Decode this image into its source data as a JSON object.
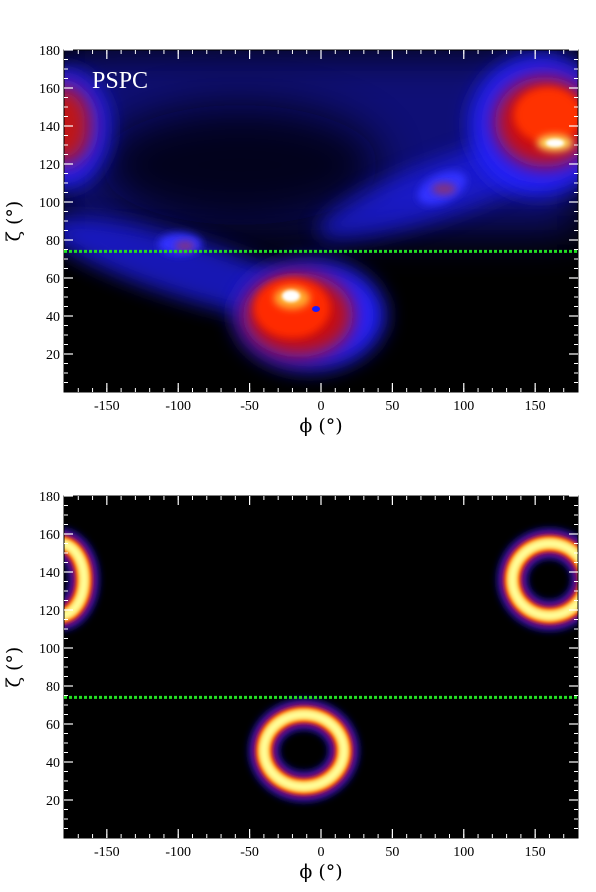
{
  "chart_data": [
    {
      "type": "heatmap",
      "panel_label": "PSPC",
      "xlabel": "ϕ (°)",
      "ylabel": "ζ (°)",
      "xlim": [
        -180,
        180
      ],
      "ylim": [
        0,
        180
      ],
      "xticks": [
        -150,
        -100,
        -50,
        0,
        50,
        100,
        150
      ],
      "xtick_labels": [
        "-150",
        "-100",
        "-50",
        "0",
        "50",
        "100",
        "150"
      ],
      "yticks": [
        20,
        40,
        60,
        80,
        100,
        120,
        140,
        160,
        180
      ],
      "ytick_labels": [
        "20",
        "40",
        "60",
        "80",
        "100",
        "120",
        "140",
        "160",
        "180"
      ],
      "colormap": [
        "#000000",
        "#0a0a60",
        "#1a1aff",
        "#c01010",
        "#ff2a00",
        "#ffb030",
        "#ffffff"
      ],
      "background_color": "#000000",
      "reference_line": {
        "y": 74,
        "style": "dotted",
        "color": "#22dd22"
      },
      "features": [
        {
          "description": "broad glow",
          "x": -10,
          "y": 125,
          "intensity": 0.2
        },
        {
          "description": "hot region",
          "x": -10,
          "y": 45,
          "intensity": 0.75
        },
        {
          "description": "peak",
          "x": -20,
          "y": 48,
          "intensity": 1.0
        },
        {
          "description": "hot region",
          "x": 155,
          "y": 140,
          "intensity": 0.8
        },
        {
          "description": "peak",
          "x": 160,
          "y": 130,
          "intensity": 1.0
        },
        {
          "description": "hot region",
          "x": -178,
          "y": 135,
          "intensity": 0.55
        },
        {
          "description": "weak blob",
          "x": 85,
          "y": 103,
          "intensity": 0.45
        },
        {
          "description": "weak blob",
          "x": -98,
          "y": 78,
          "intensity": 0.45
        }
      ]
    },
    {
      "type": "heatmap",
      "panel_label": "",
      "xlabel": "ϕ (°)",
      "ylabel": "ζ (°)",
      "xlim": [
        -180,
        180
      ],
      "ylim": [
        0,
        180
      ],
      "xticks": [
        -150,
        -100,
        -50,
        0,
        50,
        100,
        150
      ],
      "xtick_labels": [
        "-150",
        "-100",
        "-50",
        "0",
        "50",
        "100",
        "150"
      ],
      "yticks": [
        20,
        40,
        60,
        80,
        100,
        120,
        140,
        160,
        180
      ],
      "yticks_labels_note": "",
      "ytick_labels": [
        "20",
        "40",
        "60",
        "80",
        "100",
        "120",
        "140",
        "160",
        "180"
      ],
      "colormap": [
        "#000000",
        "#1a1aff",
        "#d01010",
        "#ff6a00",
        "#ffe070",
        "#ffff9a"
      ],
      "background_color": "#000000",
      "reference_line": {
        "y": 74,
        "style": "dotted",
        "color": "#22dd22"
      },
      "rings": [
        {
          "center_x": -12,
          "center_y": 46,
          "radius_x": 28,
          "radius_y": 19
        },
        {
          "center_x": 160,
          "center_y": 136,
          "radius_x": 26,
          "radius_y": 19
        },
        {
          "center_x": -183,
          "center_y": 136,
          "radius_x": 17,
          "radius_y": 19
        }
      ]
    }
  ]
}
